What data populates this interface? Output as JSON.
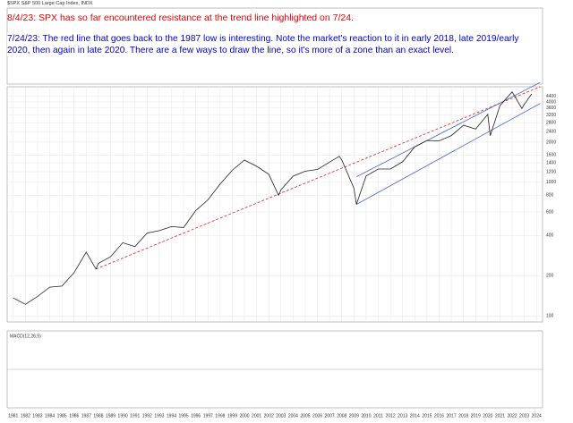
{
  "chart_data": {
    "type": "line",
    "header": "$SPX S&P 500 Large Cap Index, INDX",
    "annotation_red": "8/4/23: SPX has so far encountered resistance at the trend line highlighted on 7/24.",
    "annotation_blue": "7/24/23: The red line that goes back to the 1987 low is interesting. Note the market's reaction to it in early 2018, late 2019/early 2020, then again in late 2020. There are a few ways to draw the line, so it's more of a zone than an exact level.",
    "indicator_label": "MACD(12,26,9)",
    "log_scale": true,
    "grid": true,
    "x": [
      1981,
      1982,
      1983,
      1984,
      1985,
      1986,
      1987,
      1987.8,
      1988,
      1989,
      1990,
      1991,
      1992,
      1993,
      1994,
      1995,
      1996,
      1997,
      1998,
      1999,
      2000,
      2001,
      2002,
      2002.8,
      2003,
      2004,
      2005,
      2006,
      2007,
      2007.8,
      2008,
      2009,
      2009.2,
      2010,
      2011,
      2012,
      2013,
      2014,
      2015,
      2016,
      2017,
      2018,
      2019,
      2020,
      2020.2,
      2021,
      2022,
      2022.8,
      2023,
      2023.6
    ],
    "series": [
      {
        "name": "$SPX",
        "color": "#222222",
        "values": [
          136,
          122,
          140,
          164,
          167,
          211,
          300,
          224,
          247,
          277,
          353,
          330,
          417,
          435,
          466,
          459,
          615,
          740,
          970,
          1229,
          1469,
          1320,
          1148,
          800,
          880,
          1112,
          1212,
          1248,
          1418,
          1565,
          1468,
          903,
          683,
          1115,
          1258,
          1258,
          1426,
          1848,
          2059,
          2044,
          2239,
          2674,
          2507,
          3231,
          2237,
          3756,
          4766,
          3577,
          3840,
          4588
        ]
      }
    ],
    "trend_line": {
      "color": "#e02020",
      "x": [
        1987.8,
        2024.3
      ],
      "y": [
        224,
        5200
      ]
    },
    "channel": {
      "color": "#3355cc",
      "x": [
        2009.2,
        2024.3
      ],
      "x_upper": [
        2009.2,
        2024.3
      ],
      "lower": [
        683,
        3900
      ],
      "upper": [
        1100,
        5600
      ]
    },
    "xlim": [
      1980.5,
      2024.5
    ],
    "xticks": [
      1981,
      1982,
      1983,
      1984,
      1985,
      1986,
      1987,
      1988,
      1989,
      1990,
      1991,
      1992,
      1993,
      1994,
      1995,
      1996,
      1997,
      1998,
      1999,
      2000,
      2001,
      2002,
      2003,
      2004,
      2005,
      2006,
      2007,
      2008,
      2009,
      2010,
      2011,
      2012,
      2013,
      2014,
      2015,
      2016,
      2017,
      2018,
      2019,
      2020,
      2021,
      2022,
      2023,
      2024
    ],
    "ylim": [
      90,
      5200
    ],
    "yticks": [
      100,
      200,
      400,
      600,
      800,
      1000,
      1200,
      1400,
      1600,
      2000,
      2400,
      2800,
      3200,
      3600,
      4000,
      4400
    ]
  }
}
